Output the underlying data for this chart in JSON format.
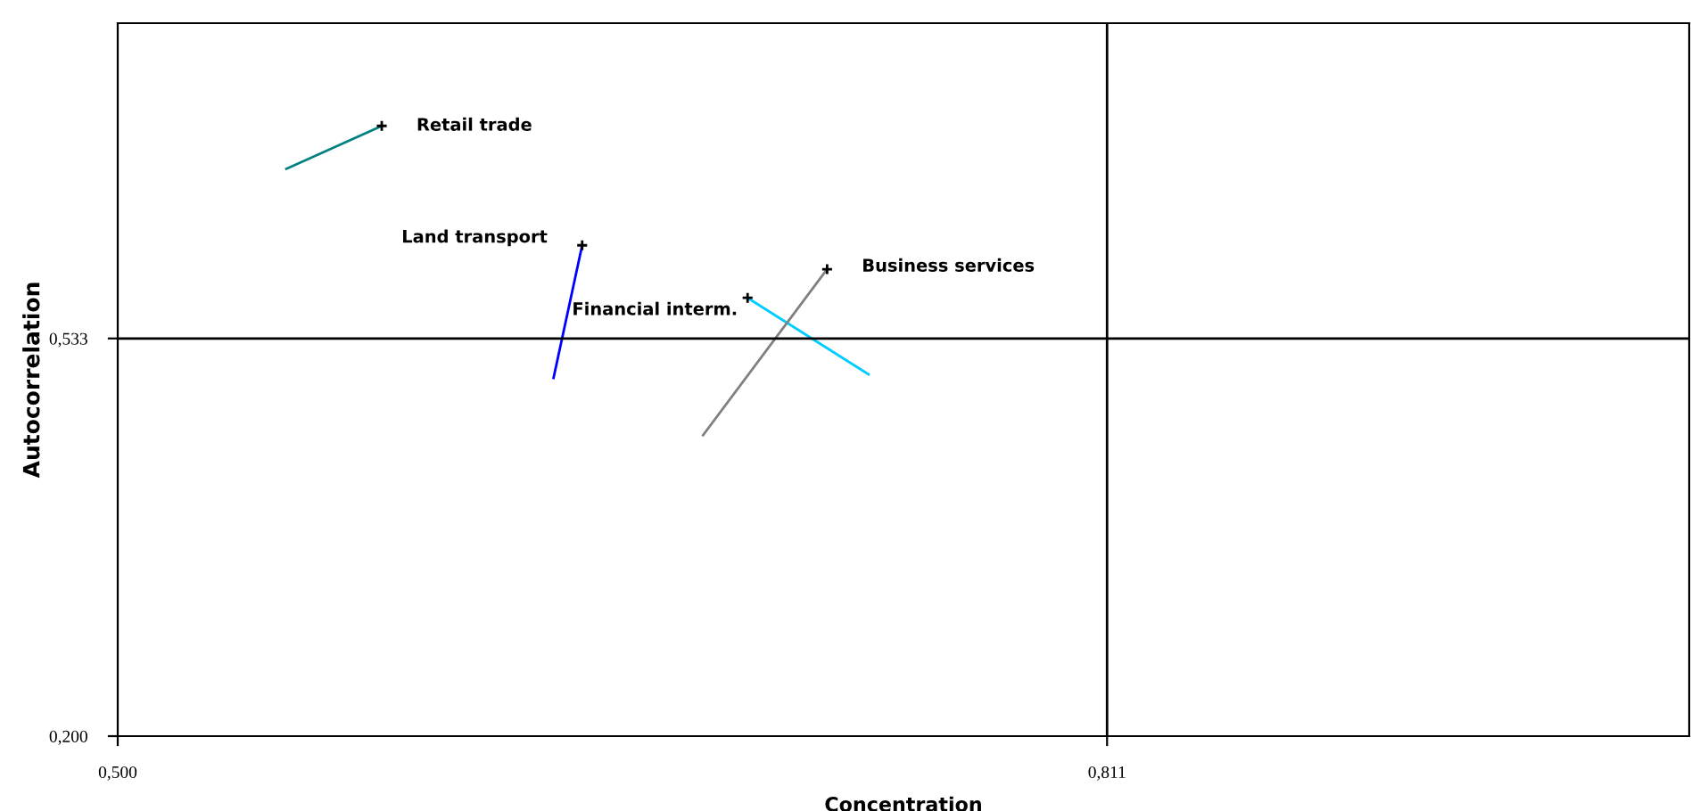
{
  "chart_data": {
    "type": "line",
    "xlabel": "Concentration",
    "ylabel": "Autocorrelation",
    "xlim": [
      0.5,
      0.994
    ],
    "ylim": [
      0.2,
      0.797
    ],
    "xticks": [
      {
        "value": 0.5,
        "label": "0,500"
      },
      {
        "value": 0.811,
        "label": "0,811"
      }
    ],
    "yticks": [
      {
        "value": 0.2,
        "label": "0,200"
      },
      {
        "value": 0.533,
        "label": "0,533"
      }
    ],
    "ref_lines": [
      {
        "axis": "x",
        "value": 0.811,
        "color": "#000000"
      },
      {
        "axis": "y",
        "value": 0.533,
        "color": "#000000"
      }
    ],
    "grid": false,
    "legend": false,
    "marker": "cross",
    "line_style": "solid",
    "series": [
      {
        "name": "Retail trade",
        "color": "#008080",
        "x": [
          0.553,
          0.583
        ],
        "values": [
          0.675,
          0.711
        ]
      },
      {
        "name": "Land transport",
        "color": "#0000ff",
        "x": [
          0.637,
          0.646
        ],
        "values": [
          0.5,
          0.611
        ]
      },
      {
        "name": "Financial interm.",
        "color": "#00ccff",
        "x": [
          0.736,
          0.698
        ],
        "values": [
          0.503,
          0.567
        ]
      },
      {
        "name": "Business services",
        "color": "#808080",
        "x": [
          0.684,
          0.723
        ],
        "values": [
          0.452,
          0.591
        ]
      }
    ]
  }
}
